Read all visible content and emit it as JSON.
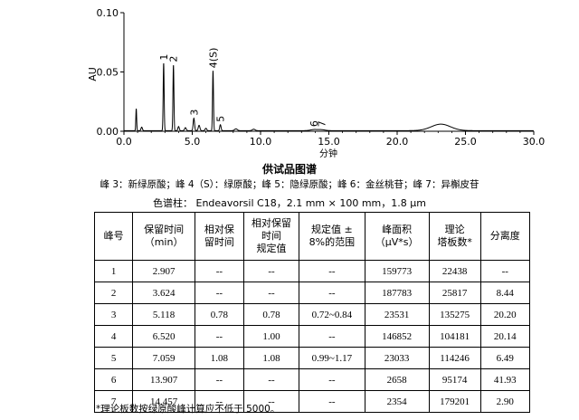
{
  "chart_data": {
    "type": "line",
    "title": "",
    "xlabel": "分钟",
    "ylabel": "AU",
    "xlim": [
      0,
      30
    ],
    "ylim": [
      0,
      0.1
    ],
    "x_ticks": [
      0.0,
      5.0,
      10.0,
      15.0,
      20.0,
      25.0,
      30.0
    ],
    "x_tick_labels": [
      "0.0",
      "5.0",
      "10.0",
      "15.0",
      "20.0",
      "25.0",
      "30.0"
    ],
    "y_ticks": [
      0.0,
      0.05,
      0.1
    ],
    "y_tick_labels": [
      "0.00",
      "0.05",
      "0.10"
    ],
    "grid": false,
    "baseline": 0.0005,
    "peaks": [
      {
        "t": 0.9,
        "h": 0.0185,
        "w": 0.03
      },
      {
        "t": 1.3,
        "h": 0.003,
        "w": 0.05
      },
      {
        "t": 2.907,
        "h": 0.057,
        "w": 0.035
      },
      {
        "t": 3.624,
        "h": 0.0555,
        "w": 0.035
      },
      {
        "t": 4.0,
        "h": 0.0035,
        "w": 0.05
      },
      {
        "t": 4.5,
        "h": 0.0025,
        "w": 0.06
      },
      {
        "t": 5.118,
        "h": 0.0105,
        "w": 0.05
      },
      {
        "t": 5.5,
        "h": 0.0045,
        "w": 0.06
      },
      {
        "t": 6.0,
        "h": 0.002,
        "w": 0.06
      },
      {
        "t": 6.52,
        "h": 0.0505,
        "w": 0.035
      },
      {
        "t": 7.059,
        "h": 0.005,
        "w": 0.05
      },
      {
        "t": 8.2,
        "h": 0.0015,
        "w": 0.1
      },
      {
        "t": 9.5,
        "h": 0.0012,
        "w": 0.1
      },
      {
        "t": 13.907,
        "h": 0.0009,
        "w": 0.25
      },
      {
        "t": 14.457,
        "h": 0.0008,
        "w": 0.25
      },
      {
        "t": 23.2,
        "h": 0.0055,
        "w": 0.7
      }
    ],
    "peak_labels": [
      {
        "text": "1",
        "t": 2.907
      },
      {
        "text": "2",
        "t": 3.624
      },
      {
        "text": "3",
        "t": 5.118
      },
      {
        "text": "4(S)",
        "t": 6.52
      },
      {
        "text": "5",
        "t": 7.059
      },
      {
        "text": "6",
        "t": 13.907
      },
      {
        "text": "7",
        "t": 14.457
      }
    ]
  },
  "captions": {
    "title": "供试品图谱",
    "peaks": "峰 3：新绿原酸；峰 4（S）：绿原酸；峰 5：隐绿原酸；峰 6：金丝桃苷；峰 7：异槲皮苷",
    "column": "色谱柱： Endeavorsil C18，2.1 mm × 100 mm，1.8 μm"
  },
  "table": {
    "headers": [
      [
        "峰号"
      ],
      [
        "保留时间",
        "（min）"
      ],
      [
        "相对保",
        "留时间"
      ],
      [
        "相对保留",
        "时间",
        "规定值"
      ],
      [
        "规定值 ±",
        "8%的范围"
      ],
      [
        "峰面积",
        "（μV*s）"
      ],
      [
        "理论",
        "塔板数*"
      ],
      [
        "分离度"
      ]
    ],
    "rows": [
      [
        "1",
        "2.907",
        "--",
        "--",
        "--",
        "159773",
        "22438",
        "--"
      ],
      [
        "2",
        "3.624",
        "--",
        "--",
        "--",
        "187783",
        "25817",
        "8.44"
      ],
      [
        "3",
        "5.118",
        "0.78",
        "0.78",
        "0.72~0.84",
        "23531",
        "135275",
        "20.20"
      ],
      [
        "4",
        "6.520",
        "--",
        "1.00",
        "--",
        "146852",
        "104181",
        "20.14"
      ],
      [
        "5",
        "7.059",
        "1.08",
        "1.08",
        "0.99~1.17",
        "23033",
        "114246",
        "6.49"
      ],
      [
        "6",
        "13.907",
        "--",
        "--",
        "--",
        "2658",
        "95174",
        "41.93"
      ],
      [
        "7",
        "14.457",
        "--",
        "--",
        "--",
        "2354",
        "179201",
        "2.90"
      ]
    ]
  },
  "footnote": "*理论板数按绿原酸峰计算应不低于 5000。"
}
